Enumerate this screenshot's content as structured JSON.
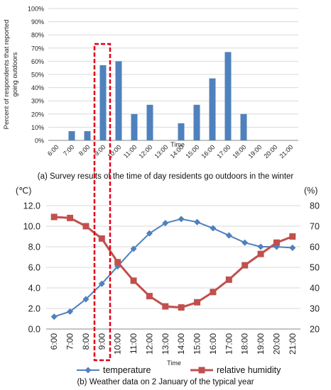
{
  "chart_data": [
    {
      "type": "bar",
      "ylabel": "Percent of respondents that reported going outdoors",
      "xlabel": "Time",
      "caption": "(a) Survey results of the time of day residents go outdoors in the winter",
      "categories": [
        "6:00",
        "7:00",
        "8:00",
        "9:00",
        "10:00",
        "11:00",
        "12:00",
        "13:00",
        "14:00",
        "15:00",
        "16:00",
        "17:00",
        "18:00",
        "19:00",
        "20:00",
        "21:00"
      ],
      "values": [
        0,
        7,
        7,
        57,
        60,
        20,
        27,
        0,
        13,
        27,
        47,
        67,
        20,
        0,
        0,
        0
      ],
      "ylim": [
        0,
        100
      ],
      "yticks": [
        "0%",
        "10%",
        "20%",
        "30%",
        "40%",
        "50%",
        "60%",
        "70%",
        "80%",
        "90%",
        "100%"
      ],
      "highlight_category": "9:00",
      "bar_color": "#4F81BD",
      "highlight_color": "#E0001B"
    },
    {
      "type": "line",
      "caption": "(b)   Weather data on 2 January of the typical year",
      "xlabel": "Time",
      "y_left_unit": "(℃)",
      "y_right_unit": "(%)",
      "categories": [
        "6:00",
        "7:00",
        "8:00",
        "9:00",
        "10:00",
        "11:00",
        "12:00",
        "13:00",
        "14:00",
        "15:00",
        "16:00",
        "17:00",
        "18:00",
        "19:00",
        "20:00",
        "21:00"
      ],
      "ylim_left": [
        0,
        12
      ],
      "yticks_left": [
        "0.0",
        "2.0",
        "4.0",
        "6.0",
        "8.0",
        "10.0",
        "12.0"
      ],
      "ylim_right": [
        20,
        80
      ],
      "yticks_right": [
        "20",
        "30",
        "40",
        "50",
        "60",
        "70",
        "80"
      ],
      "highlight_category": "9:00",
      "series": [
        {
          "name": "temperature",
          "axis": "left",
          "color": "#4F81BD",
          "marker": "diamond",
          "values": [
            1.2,
            1.7,
            2.9,
            4.4,
            6.1,
            7.8,
            9.3,
            10.3,
            10.7,
            10.4,
            9.8,
            9.1,
            8.4,
            8.0,
            8.0,
            7.9
          ]
        },
        {
          "name": "relative humidity",
          "axis": "right",
          "color": "#C0504D",
          "marker": "square",
          "values": [
            74.5,
            74,
            70,
            64,
            52.5,
            43.5,
            36,
            31,
            30.5,
            33,
            38,
            44,
            51,
            56.5,
            62,
            65
          ]
        }
      ]
    }
  ]
}
